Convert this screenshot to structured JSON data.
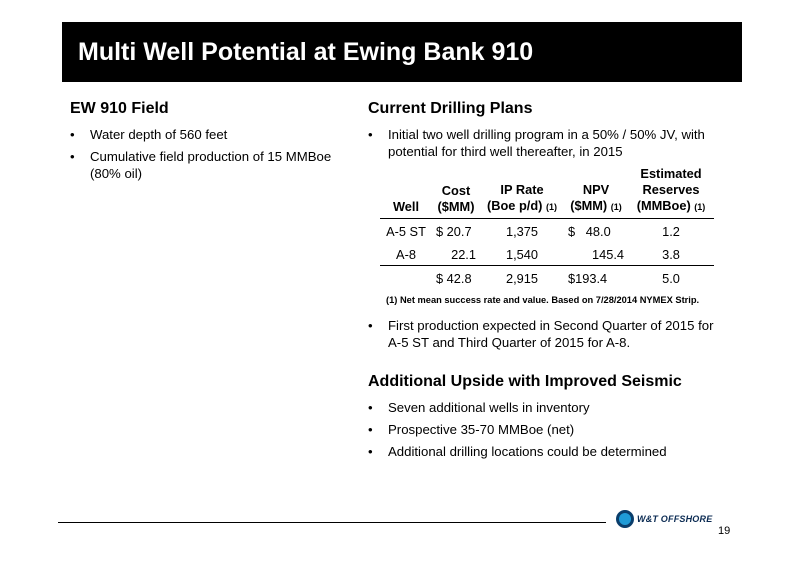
{
  "title": "Multi Well Potential at Ewing Bank 910",
  "left": {
    "heading": "EW 910 Field",
    "bullets": [
      "Water depth of 560 feet",
      "Cumulative field production of 15 MMBoe (80% oil)"
    ]
  },
  "right": {
    "heading1": "Current Drilling Plans",
    "bullets1": [
      "Initial two well drilling program in a 50% / 50% JV, with potential for third well thereafter, in 2015"
    ],
    "table": {
      "headers": {
        "well": "Well",
        "cost_l1": "Cost",
        "cost_l2": "($MM)",
        "ip_l1": "IP Rate",
        "ip_l2": "(Boe p/d)",
        "ip_note": "(1)",
        "npv_l1": "NPV",
        "npv_l2": "($MM)",
        "npv_note": "(1)",
        "res_l0": "Estimated",
        "res_l1": "Reserves",
        "res_l2": "(MMBoe)",
        "res_note": "(1)"
      },
      "rows": [
        {
          "well": "A-5 ST",
          "cost": "$  20.7",
          "ip": "1,375",
          "npv": "$   48.0",
          "reserves": "1.2"
        },
        {
          "well": "A-8",
          "cost": "22.1",
          "ip": "1,540",
          "npv": "145.4",
          "reserves": "3.8"
        },
        {
          "well": "",
          "cost": "$  42.8",
          "ip": "2,915",
          "npv": "$193.4",
          "reserves": "5.0"
        }
      ],
      "footnote": "(1) Net mean success rate and value.  Based on 7/28/2014 NYMEX Strip."
    },
    "bullets2": [
      "First production expected in Second Quarter of 2015 for A-5 ST and Third Quarter of 2015 for A-8."
    ],
    "heading2": "Additional Upside with Improved Seismic",
    "bullets3": [
      "Seven additional wells in inventory",
      "Prospective 35-70 MMBoe (net)",
      "Additional drilling locations could be determined"
    ]
  },
  "footer": {
    "logo_text": "W&T OFFSHORE",
    "page_number": "19"
  },
  "colors": {
    "title_bar": "#000000",
    "logo_blue": "#1f9bd7",
    "logo_navy": "#0a3d6b"
  }
}
